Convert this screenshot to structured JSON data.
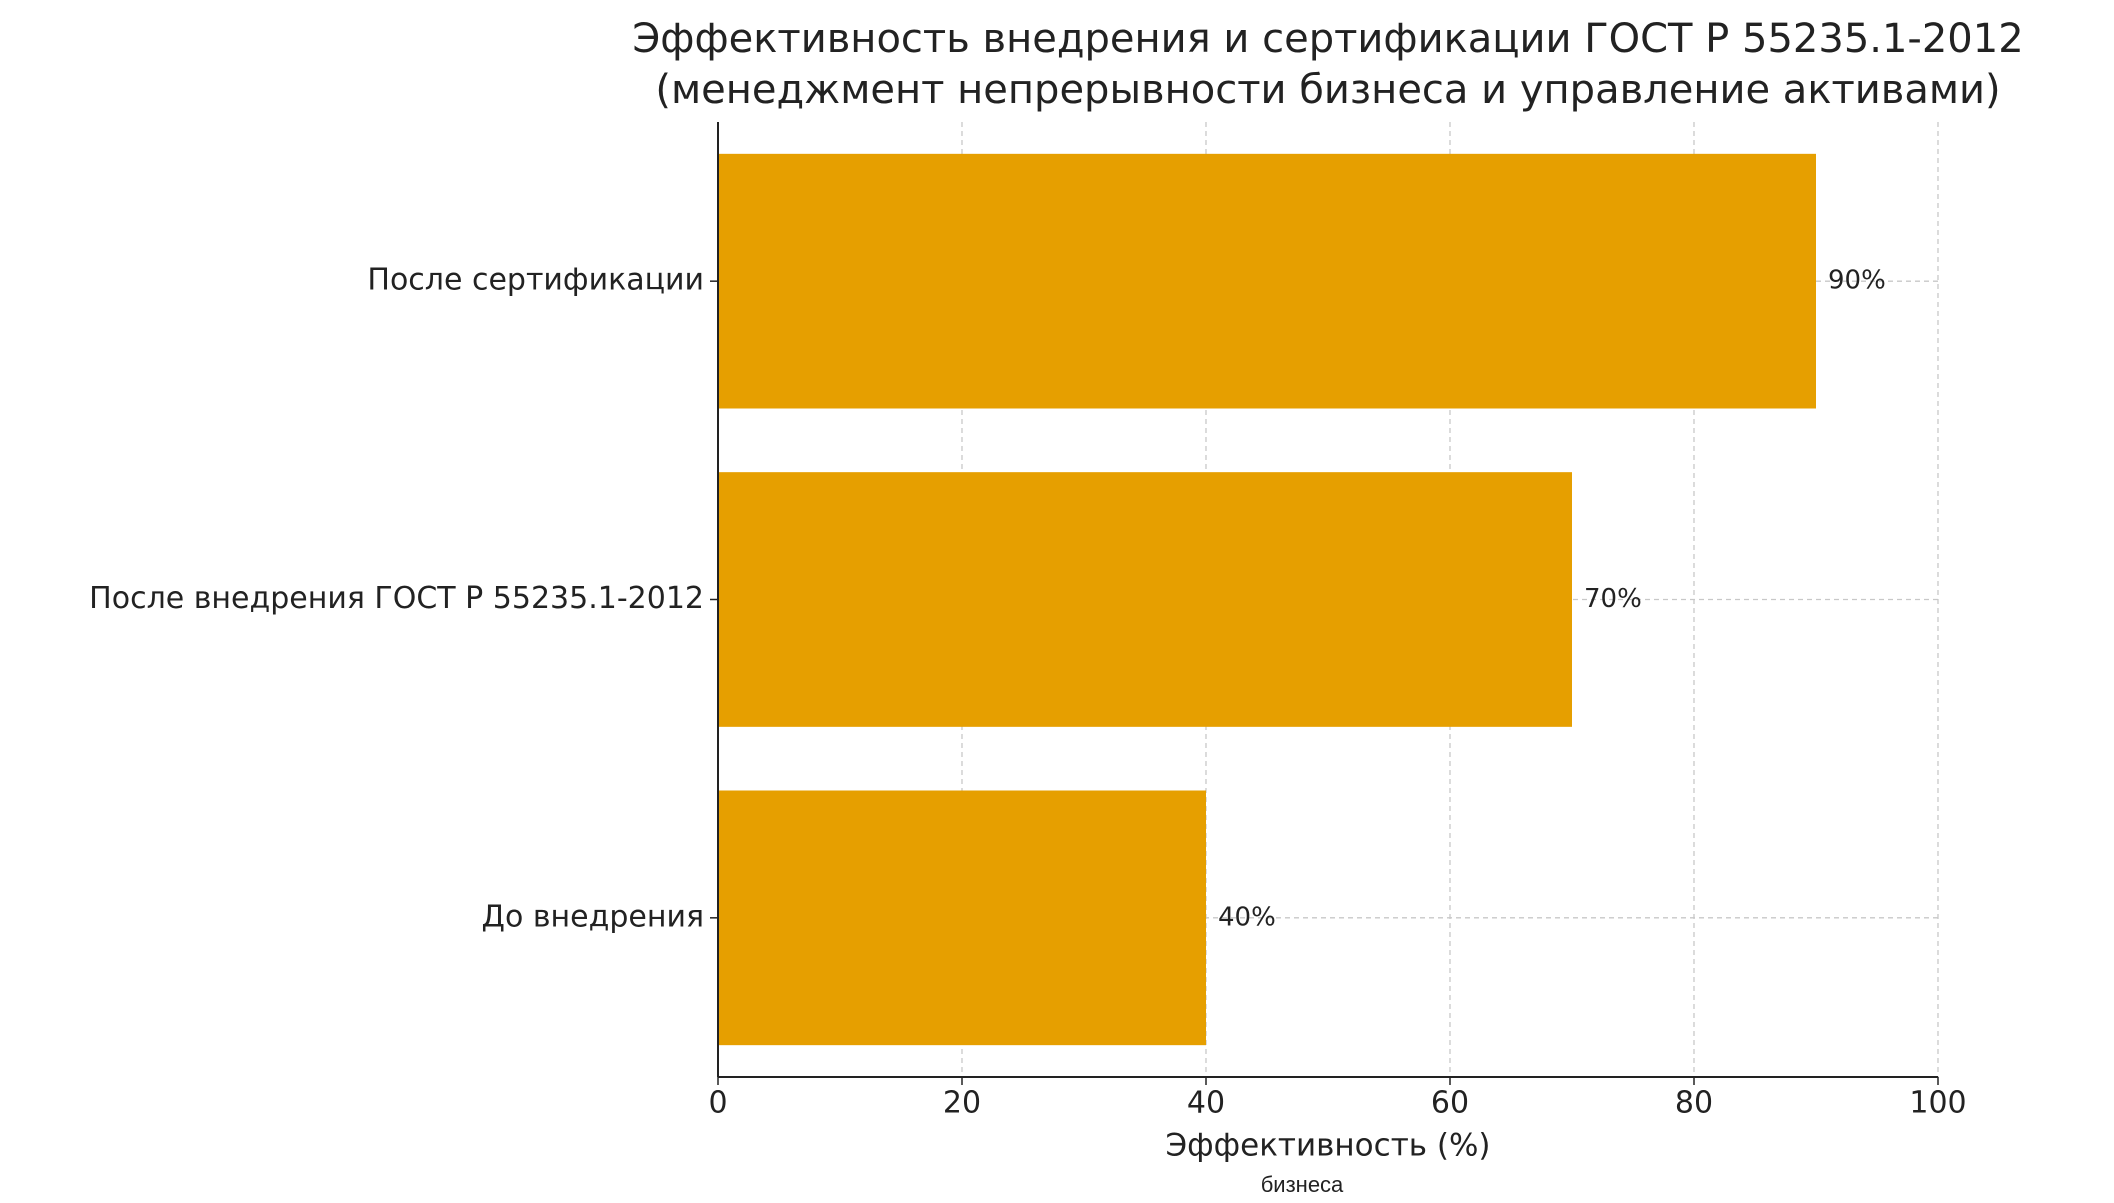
{
  "chart_data": {
    "type": "bar",
    "orientation": "horizontal",
    "title": "Эффективность внедрения и сертификации ГОСТ Р 55235.1-2012",
    "subtitle": "(менеджмент непрерывности бизнеса и управление активами)",
    "x_label": "Эффективность (%)",
    "annotation": "бизнеса",
    "categories": [
      "До внедрения",
      "После внедрения ГОСТ Р 55235.1-2012",
      "После сертификации"
    ],
    "values": [
      40,
      70,
      90
    ],
    "value_labels": [
      "40%",
      "70%",
      "90%"
    ],
    "color": "#e69f00",
    "xlim": [
      0,
      100
    ],
    "xticks": [
      0,
      20,
      40,
      60,
      80,
      100
    ],
    "grid": true
  }
}
